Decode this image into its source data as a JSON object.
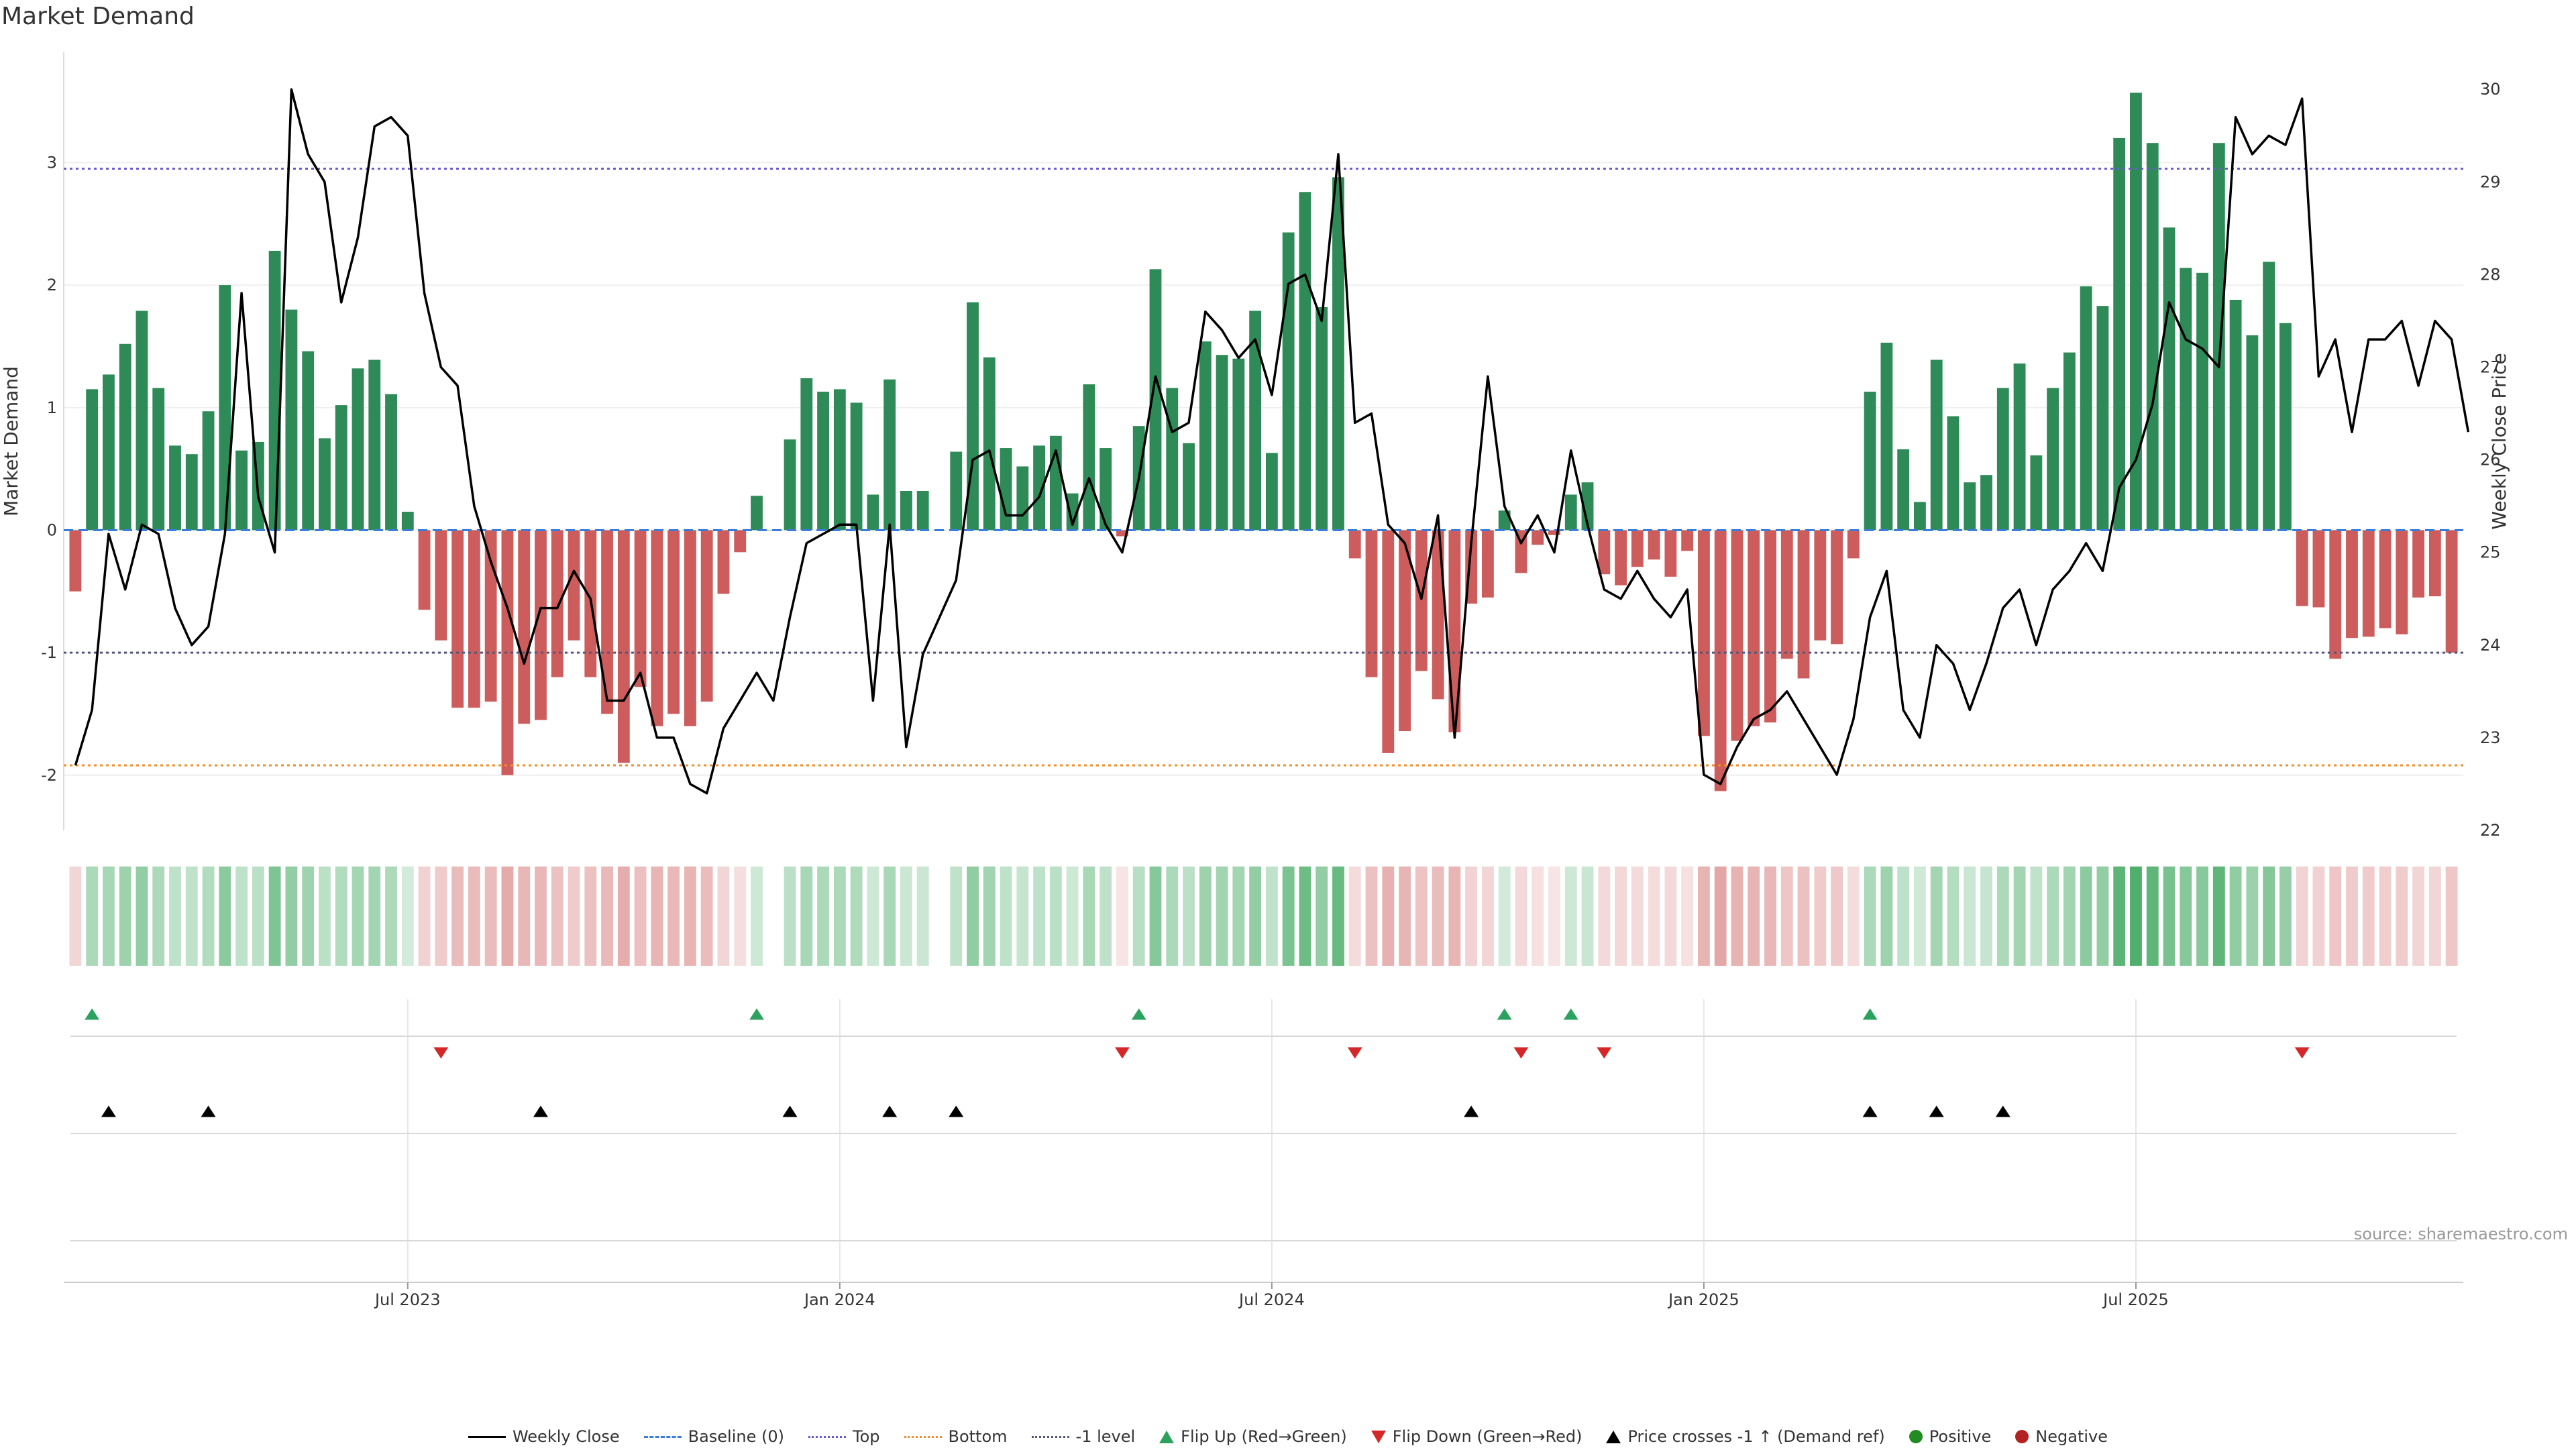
{
  "title": "Market Demand",
  "source_note": "source: sharemaestro.com",
  "colors": {
    "positive_bar": "#2e8b57",
    "negative_bar": "#cd5c5c",
    "price_line": "#000000",
    "baseline": "#3b7dd8",
    "top_line": "#6a5acd",
    "bottom_line": "#f28e2b",
    "minus1_line": "#555577",
    "flip_up": "#2ca25f",
    "flip_down": "#d62728",
    "price_cross": "#000000"
  },
  "legend": [
    {
      "label": "Weekly Close",
      "swatch": "line"
    },
    {
      "label": "Baseline (0)",
      "swatch": "dash-blue"
    },
    {
      "label": "Top",
      "swatch": "dot-purple"
    },
    {
      "label": "Bottom",
      "swatch": "dot-orange"
    },
    {
      "label": "-1 level",
      "swatch": "dot-gray"
    },
    {
      "label": "Flip Up (Red→Green)",
      "swatch": "tri-up-green"
    },
    {
      "label": "Flip Down (Green→Red)",
      "swatch": "tri-down-red"
    },
    {
      "label": "Price crosses -1 ↑ (Demand ref)",
      "swatch": "tri-up-black"
    },
    {
      "label": "Positive",
      "swatch": "dot-green"
    },
    {
      "label": "Negative",
      "swatch": "dot-red"
    }
  ],
  "chart_data": {
    "type": "bar",
    "title": "Market Demand",
    "xlabel": "",
    "ylabel": "Market Demand",
    "y2label": "Weekly Close Price",
    "ylim": [
      -2.45,
      3.9
    ],
    "y2lim": [
      22,
      30.4
    ],
    "yticks": [
      -2,
      -1,
      0,
      1,
      2,
      3
    ],
    "y2ticks": [
      22,
      23,
      24,
      25,
      26,
      27,
      28,
      29,
      30
    ],
    "xtick_labels": [
      {
        "label": "Jul 2023",
        "week": 20
      },
      {
        "label": "Jan 2024",
        "week": 46
      },
      {
        "label": "Jul 2024",
        "week": 72
      },
      {
        "label": "Jan 2025",
        "week": 98
      },
      {
        "label": "Jul 2025",
        "week": 124
      }
    ],
    "reference_lines": {
      "baseline": 0,
      "top": 2.95,
      "bottom": -1.92,
      "minus1": -1.0
    },
    "demand": [
      -0.5,
      1.15,
      1.27,
      1.52,
      1.79,
      1.16,
      0.69,
      0.62,
      0.97,
      2.0,
      0.65,
      0.72,
      2.28,
      1.8,
      1.46,
      0.75,
      1.02,
      1.32,
      1.39,
      1.11,
      0.15,
      -0.65,
      -0.9,
      -1.45,
      -1.45,
      -1.4,
      -2.0,
      -1.58,
      -1.55,
      -1.2,
      -0.9,
      -1.2,
      -1.5,
      -1.9,
      -1.28,
      -1.6,
      -1.5,
      -1.6,
      -1.4,
      -0.52,
      -0.18,
      0.28,
      0,
      0.74,
      1.24,
      1.13,
      1.15,
      1.04,
      0.29,
      1.23,
      0.32,
      0.32,
      0,
      0.64,
      1.86,
      1.41,
      0.67,
      0.52,
      0.69,
      0.77,
      0.3,
      1.19,
      0.67,
      -0.05,
      0.85,
      2.13,
      1.16,
      0.71,
      1.54,
      1.43,
      1.4,
      1.79,
      0.63,
      2.43,
      2.76,
      1.82,
      2.88,
      -0.23,
      -1.2,
      -1.82,
      -1.64,
      -1.15,
      -1.38,
      -1.65,
      -0.6,
      -0.55,
      0.16,
      -0.35,
      -0.12,
      -0.04,
      0.29,
      0.39,
      -0.36,
      -0.45,
      -0.3,
      -0.24,
      -0.38,
      -0.17,
      -1.68,
      -2.13,
      -1.72,
      -1.6,
      -1.57,
      -1.05,
      -1.21,
      -0.9,
      -0.93,
      -0.23,
      1.13,
      1.53,
      0.66,
      0.23,
      1.39,
      0.93,
      0.39,
      0.45,
      1.16,
      1.36,
      0.61,
      1.16,
      1.45,
      1.99,
      1.83,
      3.2,
      3.57,
      3.16,
      2.47,
      2.14,
      2.1,
      3.16,
      1.88,
      1.59,
      2.19,
      1.69,
      -0.62,
      -0.63,
      -1.05,
      -0.88,
      -0.87,
      -0.8,
      -0.85,
      -0.55,
      -0.54,
      -1.0
    ],
    "weekly_close": [
      22.7,
      23.3,
      25.2,
      24.6,
      25.3,
      25.2,
      24.4,
      24.0,
      24.2,
      25.2,
      27.8,
      25.6,
      25.0,
      30.0,
      29.3,
      29.0,
      27.7,
      28.4,
      29.6,
      29.7,
      29.5,
      27.8,
      27.0,
      26.8,
      25.5,
      24.9,
      24.4,
      23.8,
      24.4,
      24.4,
      24.8,
      24.5,
      23.4,
      23.4,
      23.7,
      23.0,
      23.0,
      22.5,
      22.4,
      23.1,
      23.4,
      23.7,
      23.4,
      24.3,
      25.1,
      25.2,
      25.3,
      25.3,
      23.4,
      25.3,
      22.9,
      23.9,
      24.3,
      24.7,
      26.0,
      26.1,
      25.4,
      25.4,
      25.6,
      26.1,
      25.3,
      25.8,
      25.3,
      25.0,
      25.8,
      26.9,
      26.3,
      26.4,
      27.6,
      27.4,
      27.1,
      27.3,
      26.7,
      27.9,
      28.0,
      27.5,
      29.3,
      26.4,
      26.5,
      25.3,
      25.1,
      24.5,
      25.4,
      23.0,
      25.1,
      26.9,
      25.5,
      25.1,
      25.4,
      25.0,
      26.1,
      25.3,
      24.6,
      24.5,
      24.8,
      24.5,
      24.3,
      24.6,
      22.6,
      22.5,
      22.9,
      23.2,
      23.3,
      23.5,
      23.2,
      22.9,
      22.6,
      23.2,
      24.3,
      24.8,
      23.3,
      23.0,
      24.0,
      23.8,
      23.3,
      23.8,
      24.4,
      24.6,
      24.0,
      24.6,
      24.8,
      25.1,
      24.8,
      25.7,
      26.0,
      26.6,
      27.7,
      27.3,
      27.2,
      27.0,
      29.7,
      29.3,
      29.5,
      29.4,
      29.9,
      26.9,
      27.3,
      26.3,
      27.3,
      27.3,
      27.5,
      26.8,
      27.5,
      27.3,
      26.3
    ],
    "heat_strips": "intensity follows demand sign and magnitude",
    "flip_up_weeks": [
      1,
      41,
      64,
      86,
      90,
      108
    ],
    "flip_down_weeks": [
      22,
      63,
      77,
      87,
      92,
      134
    ],
    "price_cross_weeks": [
      2,
      8,
      28,
      43,
      49,
      53,
      84,
      108,
      112,
      116
    ]
  }
}
